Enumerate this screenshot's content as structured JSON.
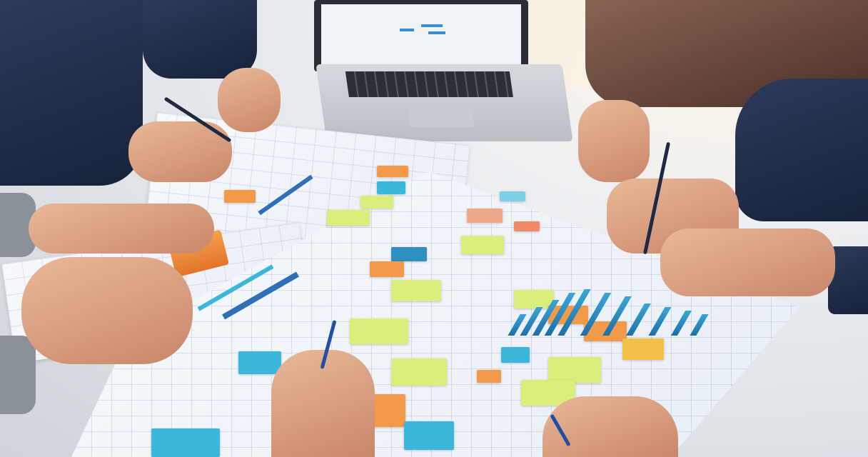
{
  "scene": {
    "description_colors": {
      "table": "#dfe3e8",
      "paper": "#f2f5fa",
      "note_yellow": "#d9ee7c",
      "note_orange": "#f39a4a",
      "note_cyan": "#3cb7dc",
      "note_blue": "#2f6fb6",
      "suit_navy": "#1f2c48",
      "suit_brown": "#6b4a3c",
      "skin": "#d9a384"
    }
  }
}
